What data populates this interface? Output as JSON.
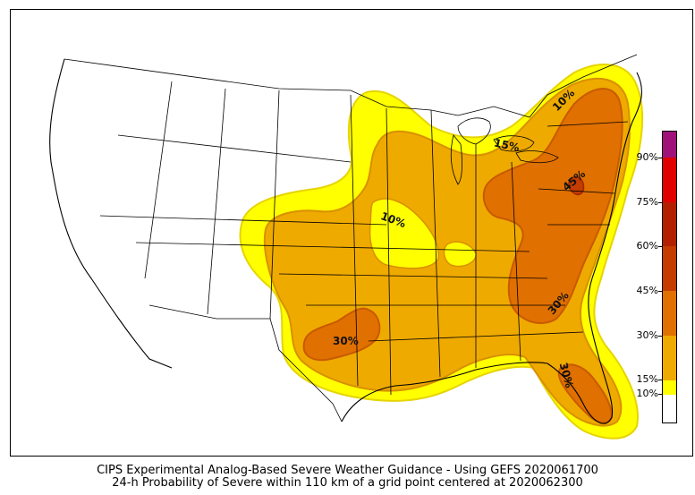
{
  "map": {
    "caption_line1": "CIPS Experimental Analog-Based Severe Weather Guidance - Using GEFS 2020061700",
    "caption_line2": "24-h Probability of Severe within 110 km of a grid point centered at 2020062300",
    "contour_labels": [
      "10%",
      "10%",
      "15%",
      "45%",
      "30%",
      "30%",
      "30%"
    ]
  },
  "legend": {
    "ticks": [
      "90%",
      "75%",
      "60%",
      "45%",
      "30%",
      "15%",
      "10%"
    ],
    "colors": {
      "p0": "#ffffff",
      "p10": "#ffff00",
      "p15": "#efaa00",
      "p30": "#e07000",
      "p45": "#c43c00",
      "p60": "#b22000",
      "p75": "#e00000",
      "p90": "#a0127a"
    }
  }
}
